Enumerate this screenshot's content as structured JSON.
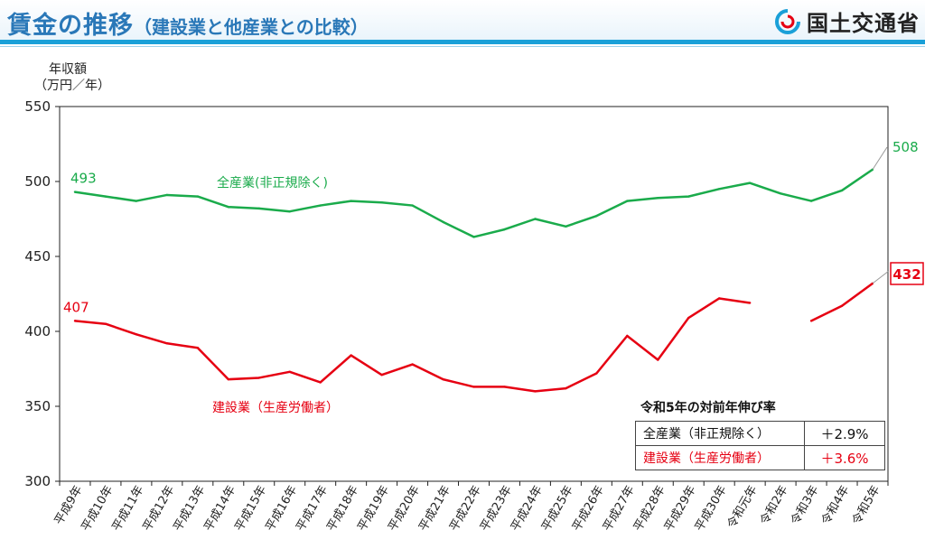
{
  "header": {
    "title": "賃金の推移",
    "subtitle": "（建設業と他産業との比較）",
    "logo_text": "国土交通省",
    "logo_icon": "mlit-logo-icon"
  },
  "axis": {
    "y_title_line1": "年収額",
    "y_title_line2": "（万円／年）"
  },
  "growth": {
    "title": "令和5年の対前年伸び率",
    "rows": [
      {
        "label": "全産業（非正規除く）",
        "value": "＋2.9%",
        "color": "#111111"
      },
      {
        "label": "建設業（生産労働者）",
        "value": "＋3.6%",
        "color": "#e60012"
      }
    ]
  },
  "chart_data": {
    "type": "line",
    "categories": [
      "平成9年",
      "平成10年",
      "平成11年",
      "平成12年",
      "平成13年",
      "平成14年",
      "平成15年",
      "平成16年",
      "平成17年",
      "平成18年",
      "平成19年",
      "平成20年",
      "平成21年",
      "平成22年",
      "平成23年",
      "平成24年",
      "平成25年",
      "平成26年",
      "平成27年",
      "平成28年",
      "平成29年",
      "平成30年",
      "令和元年",
      "令和2年",
      "令和3年",
      "令和4年",
      "令和5年"
    ],
    "ylim": [
      300,
      550
    ],
    "yticks": [
      300,
      350,
      400,
      450,
      500,
      550
    ],
    "series": [
      {
        "name": "全産業(非正規除く)",
        "color": "#1aab4b",
        "values": [
          493,
          490,
          487,
          491,
          490,
          483,
          482,
          480,
          484,
          487,
          486,
          484,
          473,
          463,
          468,
          475,
          470,
          477,
          487,
          489,
          490,
          495,
          499,
          492,
          487,
          494,
          508
        ],
        "start_label": "493",
        "end_label": "508"
      },
      {
        "name": "建設業（生産労働者）",
        "color": "#e60012",
        "values": [
          407,
          405,
          398,
          392,
          389,
          368,
          369,
          373,
          366,
          384,
          371,
          378,
          368,
          363,
          363,
          360,
          362,
          372,
          397,
          381,
          409,
          422,
          419,
          null,
          407,
          417,
          432
        ],
        "start_label": "407",
        "end_label": "432"
      }
    ]
  }
}
